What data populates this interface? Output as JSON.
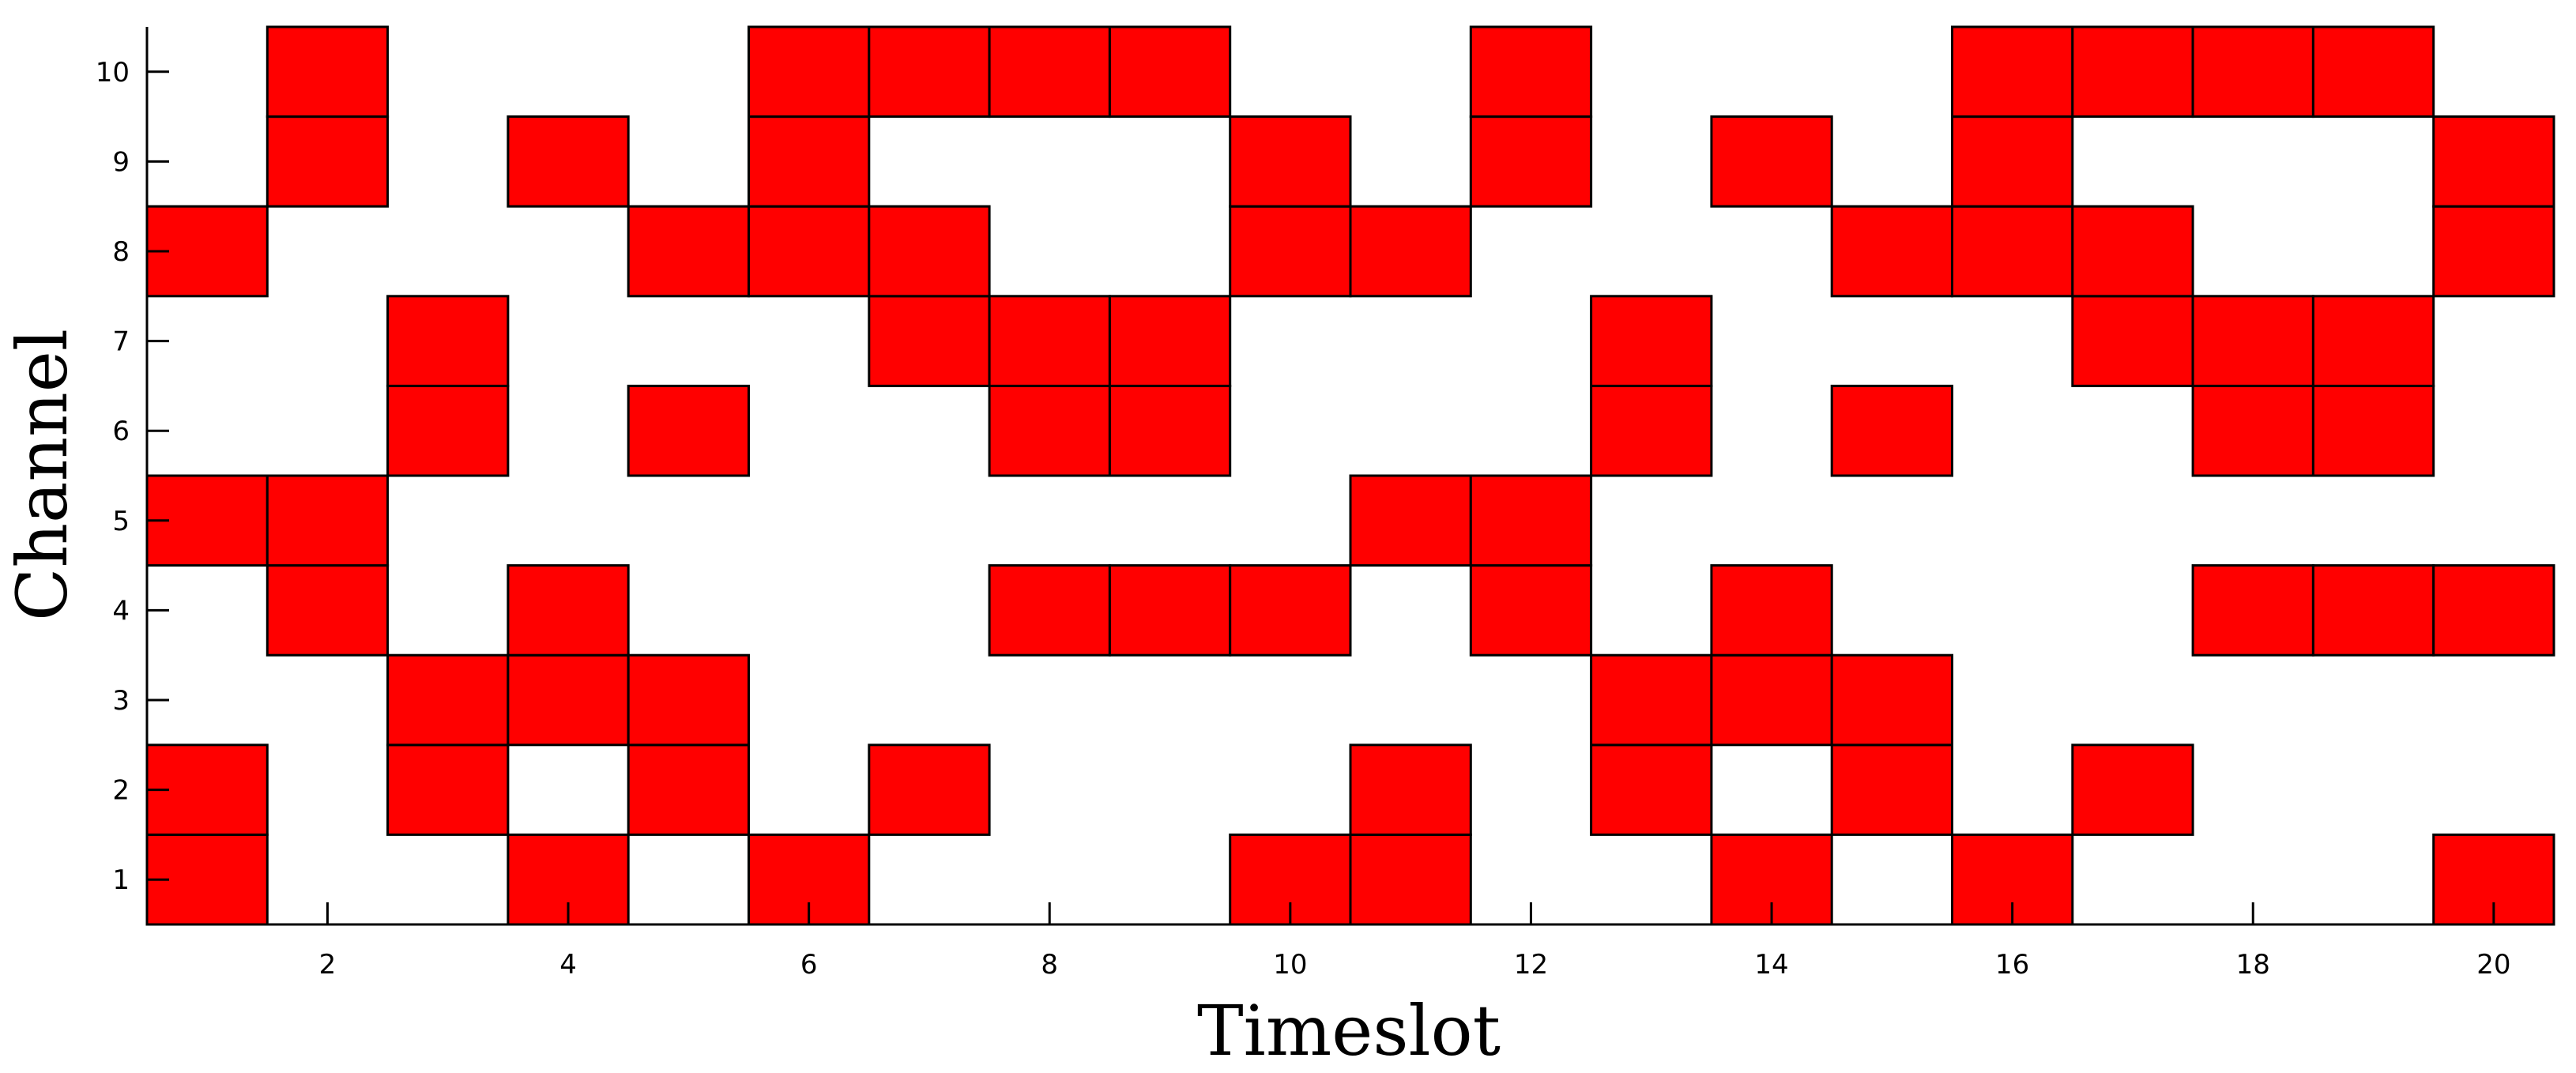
{
  "colors": {
    "occupied": "#ff0000",
    "cell_edge": "#000000",
    "axis": "#000000",
    "background": "#ffffff"
  },
  "chart_data": {
    "type": "heatmap",
    "title": "",
    "xlabel": "Timeslot",
    "ylabel": "Channel",
    "xlim": [
      0.5,
      20.5
    ],
    "ylim": [
      0.5,
      10.5
    ],
    "xticks": [
      2,
      4,
      6,
      8,
      10,
      12,
      14,
      16,
      18,
      20
    ],
    "xtick_labels": [
      "2",
      "4",
      "6",
      "8",
      "10",
      "12",
      "14",
      "16",
      "18",
      "20"
    ],
    "yticks": [
      1,
      2,
      3,
      4,
      5,
      6,
      7,
      8,
      9,
      10
    ],
    "ytick_labels": [
      "1",
      "2",
      "3",
      "4",
      "5",
      "6",
      "7",
      "8",
      "9",
      "10"
    ],
    "grid": false,
    "value_encoding": "1 = occupied (red cell), 0 = free (white)",
    "occupied_cells": [
      {
        "timeslot": 1,
        "channels": [
          1,
          2,
          5,
          8
        ]
      },
      {
        "timeslot": 2,
        "channels": [
          4,
          5,
          9,
          10
        ]
      },
      {
        "timeslot": 3,
        "channels": [
          2,
          3,
          6,
          7
        ]
      },
      {
        "timeslot": 4,
        "channels": [
          1,
          3,
          4,
          9
        ]
      },
      {
        "timeslot": 5,
        "channels": [
          2,
          3,
          6,
          8
        ]
      },
      {
        "timeslot": 6,
        "channels": [
          1,
          8,
          9,
          10
        ]
      },
      {
        "timeslot": 7,
        "channels": [
          2,
          7,
          8,
          10
        ]
      },
      {
        "timeslot": 8,
        "channels": [
          4,
          6,
          7,
          10
        ]
      },
      {
        "timeslot": 9,
        "channels": [
          4,
          6,
          7,
          10
        ]
      },
      {
        "timeslot": 10,
        "channels": [
          1,
          4,
          8,
          9
        ]
      },
      {
        "timeslot": 11,
        "channels": [
          1,
          2,
          5,
          8
        ]
      },
      {
        "timeslot": 12,
        "channels": [
          4,
          5,
          9,
          10
        ]
      },
      {
        "timeslot": 13,
        "channels": [
          2,
          3,
          6,
          7
        ]
      },
      {
        "timeslot": 14,
        "channels": [
          1,
          3,
          4,
          9
        ]
      },
      {
        "timeslot": 15,
        "channels": [
          2,
          3,
          6,
          8
        ]
      },
      {
        "timeslot": 16,
        "channels": [
          1,
          8,
          9,
          10
        ]
      },
      {
        "timeslot": 17,
        "channels": [
          2,
          7,
          8,
          10
        ]
      },
      {
        "timeslot": 18,
        "channels": [
          4,
          6,
          7,
          10
        ]
      },
      {
        "timeslot": 19,
        "channels": [
          4,
          6,
          7,
          10
        ]
      },
      {
        "timeslot": 20,
        "channels": [
          1,
          4,
          8,
          9
        ]
      }
    ]
  }
}
